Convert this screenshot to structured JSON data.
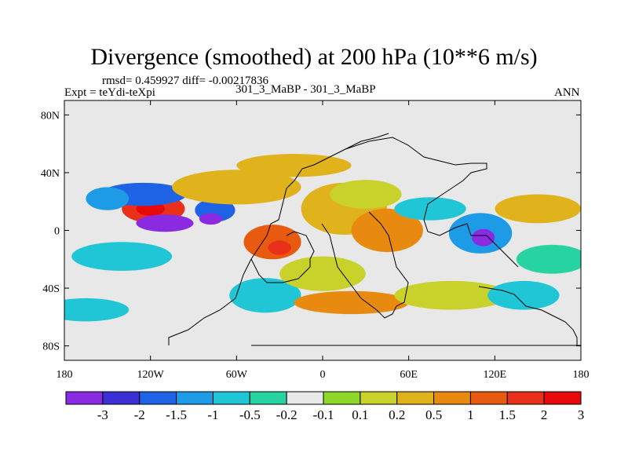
{
  "chart_data": {
    "type": "heatmap",
    "title": "Divergence (smoothed) at 200 hPa (10**6 m/s)",
    "stats_text": "rmsd= 0.459927 diff= -0.00217836",
    "left_subtitle": "Expt = teYdi-teXpi",
    "center_subtitle": "301_3_MaBP - 301_3_MaBP",
    "right_subtitle": "ANN",
    "xlim": [
      -180,
      180
    ],
    "ylim": [
      -90,
      90
    ],
    "x_ticks": [
      {
        "value": -180,
        "label": "180"
      },
      {
        "value": -120,
        "label": "120W"
      },
      {
        "value": -60,
        "label": "60W"
      },
      {
        "value": 0,
        "label": "0"
      },
      {
        "value": 60,
        "label": "60E"
      },
      {
        "value": 120,
        "label": "120E"
      },
      {
        "value": 180,
        "label": "180"
      }
    ],
    "y_ticks": [
      {
        "value": 80,
        "label": "80N"
      },
      {
        "value": 40,
        "label": "40N"
      },
      {
        "value": 0,
        "label": "0"
      },
      {
        "value": -40,
        "label": "40S"
      },
      {
        "value": -80,
        "label": "80S"
      }
    ],
    "colorbar": {
      "colors": [
        "#8a2be2",
        "#3b2fd6",
        "#1e63e6",
        "#1e9be6",
        "#20c6d6",
        "#27d3a0",
        "#e8e8e8",
        "#8ed82a",
        "#c8d22a",
        "#e0b21c",
        "#e88a10",
        "#e85a10",
        "#e8301a",
        "#e80a0a"
      ],
      "labels": [
        "-3",
        "-2",
        "-1.5",
        "-1",
        "-0.5",
        "-0.2",
        "-0.1",
        "0.1",
        "0.2",
        "0.5",
        "1",
        "1.5",
        "2",
        "3"
      ]
    },
    "blobs": [
      {
        "lon": -118,
        "lat": 15,
        "rx": 22,
        "ry": 10,
        "level": 12
      },
      {
        "lon": -120,
        "lat": 15,
        "rx": 10,
        "ry": 5,
        "level": 13
      },
      {
        "lon": -110,
        "lat": 5,
        "rx": 20,
        "ry": 6,
        "level": 0
      },
      {
        "lon": -125,
        "lat": 25,
        "rx": 30,
        "ry": 8,
        "level": 2
      },
      {
        "lon": -150,
        "lat": 22,
        "rx": 15,
        "ry": 8,
        "level": 3
      },
      {
        "lon": -75,
        "lat": 14,
        "rx": 14,
        "ry": 8,
        "level": 2
      },
      {
        "lon": -78,
        "lat": 8,
        "rx": 8,
        "ry": 4,
        "level": 0
      },
      {
        "lon": -60,
        "lat": 30,
        "rx": 45,
        "ry": 12,
        "level": 9
      },
      {
        "lon": -35,
        "lat": -8,
        "rx": 20,
        "ry": 12,
        "level": 11
      },
      {
        "lon": -30,
        "lat": -12,
        "rx": 8,
        "ry": 5,
        "level": 12
      },
      {
        "lon": 15,
        "lat": 15,
        "rx": 30,
        "ry": 18,
        "level": 9
      },
      {
        "lon": 45,
        "lat": 0,
        "rx": 25,
        "ry": 15,
        "level": 10
      },
      {
        "lon": 30,
        "lat": 25,
        "rx": 25,
        "ry": 10,
        "level": 8
      },
      {
        "lon": 110,
        "lat": -2,
        "rx": 22,
        "ry": 14,
        "level": 3
      },
      {
        "lon": 112,
        "lat": -5,
        "rx": 8,
        "ry": 6,
        "level": 0
      },
      {
        "lon": 75,
        "lat": 15,
        "rx": 25,
        "ry": 8,
        "level": 4
      },
      {
        "lon": 150,
        "lat": 15,
        "rx": 30,
        "ry": 10,
        "level": 9
      },
      {
        "lon": 160,
        "lat": -20,
        "rx": 25,
        "ry": 10,
        "level": 5
      },
      {
        "lon": -140,
        "lat": -18,
        "rx": 35,
        "ry": 10,
        "level": 4
      },
      {
        "lon": -40,
        "lat": -45,
        "rx": 25,
        "ry": 12,
        "level": 4
      },
      {
        "lon": 20,
        "lat": -50,
        "rx": 40,
        "ry": 8,
        "level": 10
      },
      {
        "lon": 90,
        "lat": -45,
        "rx": 40,
        "ry": 10,
        "level": 8
      },
      {
        "lon": -165,
        "lat": -55,
        "rx": 30,
        "ry": 8,
        "level": 4
      },
      {
        "lon": 0,
        "lat": -30,
        "rx": 30,
        "ry": 12,
        "level": 8
      },
      {
        "lon": -20,
        "lat": 45,
        "rx": 40,
        "ry": 8,
        "level": 9
      },
      {
        "lon": 140,
        "lat": -45,
        "rx": 25,
        "ry": 10,
        "level": 4
      }
    ]
  }
}
